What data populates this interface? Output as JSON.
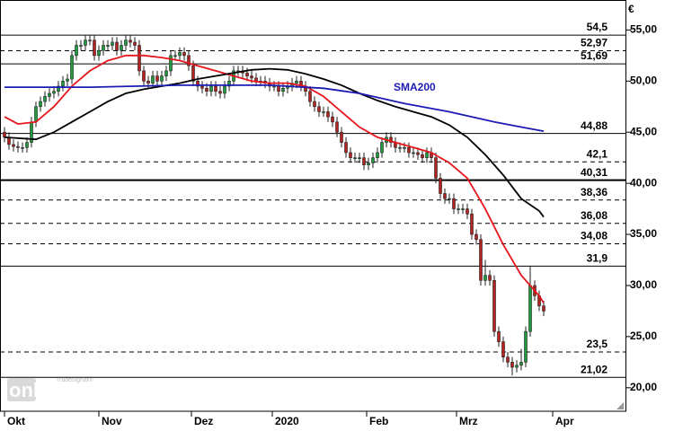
{
  "chart_data": {
    "type": "candlestick",
    "currency": "€",
    "watermark": "online",
    "watermark_brand": "Tradesignal®",
    "xlim": [
      -1,
      138.4
    ],
    "ylim": [
      17.7,
      56
    ],
    "xticks": [
      {
        "value": 0,
        "label": "Okt"
      },
      {
        "value": 21,
        "label": "Nov"
      },
      {
        "value": 41.6,
        "label": "Dez"
      },
      {
        "value": 59.6,
        "label": "2020"
      },
      {
        "value": 80.6,
        "label": "Feb"
      },
      {
        "value": 100.6,
        "label": "Mrz"
      },
      {
        "value": 122,
        "label": "Apr"
      }
    ],
    "yticks": [
      {
        "value": 20,
        "label": "20,00"
      },
      {
        "value": 25,
        "label": "25,00"
      },
      {
        "value": 30,
        "label": "30,00"
      },
      {
        "value": 35,
        "label": "35,00"
      },
      {
        "value": 40,
        "label": "40,00"
      },
      {
        "value": 45,
        "label": "45,00"
      },
      {
        "value": 50,
        "label": "50,00"
      },
      {
        "value": 55,
        "label": "55,00"
      }
    ],
    "up_color": "#1f9a3c",
    "down_color": "#b3221e",
    "x": [
      0,
      1,
      2,
      3,
      4,
      5,
      6,
      7,
      8,
      9,
      10,
      11,
      12,
      13,
      14,
      15,
      16,
      17,
      18,
      19,
      20,
      21,
      22,
      23,
      24,
      25,
      26,
      27,
      28,
      29,
      30,
      31,
      32,
      33,
      34,
      35,
      36,
      37,
      38,
      39,
      40,
      41,
      42,
      43,
      44,
      45,
      46,
      47,
      48,
      49,
      50,
      51,
      52,
      53,
      54,
      55,
      56,
      57,
      58,
      59,
      60,
      61,
      62,
      63,
      64,
      65,
      66,
      67,
      68,
      69,
      70,
      71,
      72,
      73,
      74,
      75,
      76,
      77,
      78,
      79,
      80,
      81,
      82,
      83,
      84,
      85,
      86,
      87,
      88,
      89,
      90,
      91,
      92,
      93,
      94,
      95,
      96,
      97,
      98,
      99,
      100,
      101,
      102,
      103,
      104,
      105,
      106,
      107,
      108,
      109,
      110,
      111,
      112,
      113,
      114,
      115,
      116,
      117,
      118,
      119,
      120
    ],
    "open": [
      45,
      44.5,
      43.8,
      43.6,
      43.5,
      43.5,
      44,
      46,
      47.5,
      48,
      48.5,
      48.8,
      49,
      49.5,
      50,
      50.2,
      52.5,
      53.5,
      53.5,
      54,
      54,
      52.5,
      53,
      53.5,
      53.5,
      53.8,
      53,
      53.5,
      54,
      53.8,
      53.5,
      51,
      50,
      49.8,
      50.5,
      50,
      50.5,
      51,
      52.5,
      52.5,
      52.8,
      52.5,
      51.5,
      50,
      49.5,
      49.3,
      49,
      49.5,
      49,
      48.8,
      49.5,
      50,
      51,
      51,
      50.8,
      50.5,
      50.3,
      50,
      50,
      49.8,
      49.5,
      49.5,
      49,
      49.3,
      49.5,
      49.8,
      50,
      49.5,
      49,
      48,
      47.5,
      47,
      47,
      46.5,
      46,
      45,
      44,
      43,
      42.5,
      42.5,
      42.5,
      41.8,
      42,
      42.5,
      43,
      44,
      44.5,
      44,
      43.5,
      43.5,
      43.5,
      43,
      43,
      42.8,
      42.5,
      43,
      42.5,
      40.5,
      39,
      38.5,
      38.5,
      37.5,
      37.5,
      37.5,
      37,
      35,
      34.5,
      30.5,
      31,
      30.5,
      25.5,
      24.5,
      23,
      22.5,
      22,
      22.2,
      22.5,
      25.5,
      30,
      29,
      28
    ],
    "high": [
      45.5,
      45,
      44.3,
      44.1,
      44,
      44.5,
      46.5,
      48,
      48.5,
      49,
      49.3,
      49.5,
      50,
      50.5,
      50.7,
      53,
      54,
      54,
      54.5,
      54.5,
      54.5,
      53.5,
      54,
      54,
      54.3,
      54.3,
      54,
      54.5,
      54.5,
      54.3,
      54,
      51.5,
      50.5,
      51,
      51,
      51,
      51.5,
      53,
      53,
      53.3,
      53.3,
      53,
      52,
      50.5,
      50,
      49.8,
      50,
      50,
      49.5,
      50,
      50.5,
      51.5,
      51.5,
      51.5,
      51.3,
      51,
      50.8,
      50.5,
      50.5,
      50.3,
      50,
      50,
      49.8,
      50,
      50.3,
      50.5,
      50.5,
      50,
      49.5,
      48.5,
      48,
      47.5,
      47.5,
      47,
      46.5,
      45.5,
      44.5,
      43.5,
      43,
      43,
      43,
      42.5,
      43,
      43.5,
      44.5,
      45,
      45,
      44.5,
      44,
      44,
      44,
      43.5,
      43.5,
      43.3,
      43.5,
      43.5,
      43,
      41,
      39.5,
      39,
      39,
      38,
      38,
      38,
      37.5,
      35.5,
      35,
      32.5,
      31.5,
      31,
      26,
      25,
      23.5,
      23,
      22.7,
      23.8,
      26,
      31.9,
      30.5,
      29.5,
      28.5
    ],
    "low": [
      44,
      43.3,
      43.1,
      43,
      43,
      43,
      43.5,
      45.5,
      47,
      47.5,
      48,
      48.3,
      48.5,
      49,
      49.5,
      49.7,
      52,
      53,
      53,
      53.5,
      52,
      52,
      52.5,
      53,
      53,
      52.5,
      52.5,
      53,
      53.3,
      53,
      50.5,
      49.5,
      49.3,
      49.3,
      49.5,
      49.5,
      50,
      50.5,
      52,
      52,
      52,
      51,
      49.5,
      49,
      48.8,
      48.5,
      48.5,
      48.5,
      48.3,
      48.3,
      49,
      49.5,
      50.5,
      50.3,
      50,
      49.8,
      49.5,
      49.5,
      49.3,
      49,
      49,
      48.5,
      48.5,
      48.8,
      49,
      49.3,
      49,
      48.5,
      47.5,
      47,
      46.5,
      46.5,
      46,
      45.5,
      44.5,
      43.5,
      42.5,
      42,
      42,
      42,
      41.3,
      41.3,
      41.5,
      42,
      42.5,
      43.5,
      43.5,
      43,
      43,
      43,
      42.5,
      42.5,
      42.3,
      42,
      42,
      42,
      40,
      38.5,
      38,
      38,
      37,
      37,
      37,
      36.5,
      34.5,
      34,
      30,
      30,
      30,
      25,
      24,
      22.5,
      22,
      21.2,
      21.5,
      21.7,
      22,
      25,
      28.5,
      27.5,
      27
    ],
    "close": [
      44.5,
      43.8,
      43.6,
      43.5,
      43.5,
      44,
      46,
      47.5,
      48,
      48.5,
      48.8,
      49,
      49.5,
      50,
      50.2,
      52.5,
      53.5,
      53.5,
      54,
      54,
      52.5,
      53,
      53.5,
      53.5,
      53.8,
      53,
      53.5,
      54,
      53.8,
      53.5,
      51,
      50,
      49.8,
      50.5,
      50,
      50.5,
      51,
      52.5,
      52.5,
      52.8,
      52.5,
      51.5,
      50,
      49.5,
      49.3,
      49,
      49.5,
      49,
      48.8,
      49.5,
      50,
      51,
      51,
      50.8,
      50.5,
      50.3,
      50,
      50,
      49.8,
      49.5,
      49.5,
      49,
      49.3,
      49.5,
      49.8,
      50,
      49.5,
      49,
      48,
      47.5,
      47,
      47,
      46.5,
      46,
      45,
      44,
      43,
      42.5,
      42.5,
      42.5,
      41.8,
      42,
      42.5,
      43,
      44,
      44.5,
      44,
      43.5,
      43.5,
      43.5,
      43,
      43,
      42.8,
      42.5,
      43,
      42.5,
      40.5,
      39,
      38.5,
      38.5,
      37.5,
      37.5,
      37.5,
      37,
      35,
      34.5,
      30.5,
      31,
      30.5,
      25.5,
      24.5,
      23,
      22.5,
      22,
      22.2,
      22.5,
      25.5,
      30,
      29,
      28,
      27.5
    ],
    "series": [
      {
        "color": "#e8141c",
        "x": [
          0,
          3,
          7,
          11,
          15,
          19,
          23,
          27,
          31,
          35,
          39,
          43,
          47,
          51,
          55,
          59,
          63,
          67,
          71,
          75,
          79,
          83,
          87,
          91,
          95,
          99,
          103,
          107,
          111,
          115,
          119,
          120
        ],
        "values": [
          46.5,
          45.8,
          46,
          47.5,
          49.5,
          51,
          52,
          52.5,
          52.5,
          52.3,
          52,
          51.5,
          51,
          50.5,
          50,
          49.8,
          49.8,
          49.5,
          48.5,
          47,
          45.5,
          44.5,
          44,
          43.5,
          43,
          42,
          40.5,
          37.5,
          34,
          31,
          29,
          28.3
        ]
      },
      {
        "color": "#000000",
        "x": [
          0,
          7,
          11,
          15,
          19,
          23,
          27,
          31,
          35,
          39,
          43,
          47,
          51,
          55,
          59,
          63,
          67,
          71,
          75,
          79,
          83,
          87,
          91,
          95,
          99,
          103,
          107,
          111,
          115,
          119,
          120
        ],
        "values": [
          44.5,
          44.3,
          45,
          46,
          47,
          48,
          48.8,
          49.2,
          49.5,
          49.8,
          50.2,
          50.5,
          50.8,
          51.1,
          51.2,
          51.1,
          50.7,
          50.2,
          49.6,
          48.8,
          48.1,
          47.5,
          47,
          46.5,
          45.7,
          44.5,
          42.8,
          40.8,
          38.5,
          37.3,
          36.7
        ]
      },
      {
        "name": "SMA200",
        "color": "#1c1cb4",
        "x": [
          0,
          19,
          39,
          59,
          71,
          79,
          89,
          99,
          109,
          115,
          120
        ],
        "values": [
          49.4,
          49.4,
          49.6,
          49.6,
          49.3,
          48.8,
          47.8,
          47,
          46,
          45.5,
          45.1
        ]
      }
    ],
    "levels": [
      {
        "value": 54.5,
        "label": "54,5",
        "style": "solid"
      },
      {
        "value": 52.97,
        "label": "52,97",
        "style": "dashed"
      },
      {
        "value": 51.69,
        "label": "51,69",
        "style": "solid"
      },
      {
        "value": 44.88,
        "label": "44,88",
        "style": "solid"
      },
      {
        "value": 42.1,
        "label": "42,1",
        "style": "dashed"
      },
      {
        "value": 40.31,
        "label": "40,31",
        "style": "thick"
      },
      {
        "value": 38.36,
        "label": "38,36",
        "style": "dashed"
      },
      {
        "value": 36.08,
        "label": "36,08",
        "style": "dashed"
      },
      {
        "value": 34.08,
        "label": "34,08",
        "style": "dashed"
      },
      {
        "value": 31.9,
        "label": "31,9",
        "style": "solid"
      },
      {
        "value": 23.5,
        "label": "23,5",
        "style": "dashed"
      },
      {
        "value": 21.02,
        "label": "21,02",
        "style": "solid"
      }
    ]
  }
}
